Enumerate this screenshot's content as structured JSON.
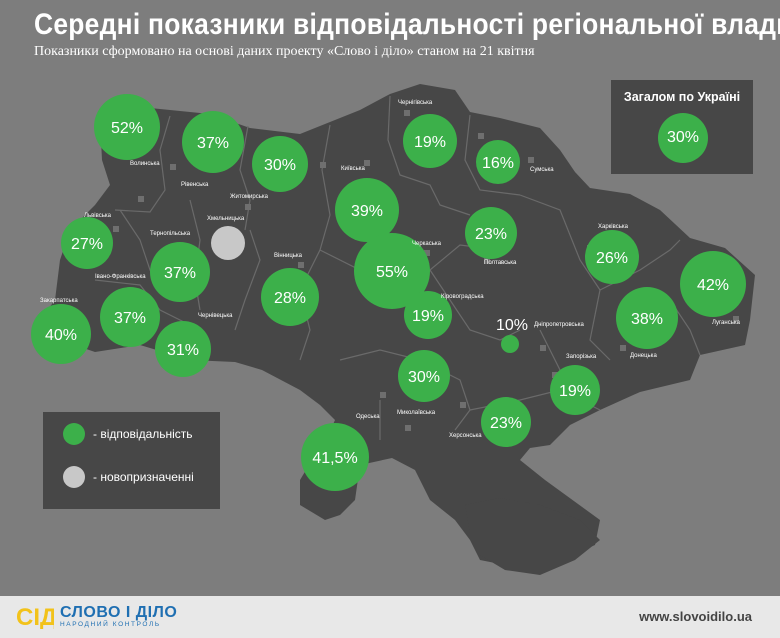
{
  "title": "Середні показники відповідальності регіональної влади",
  "subtitle": "Показники сформовано на основі даних проекту «Слово і діло» станом на 21 квітня",
  "ukraine_total": {
    "label": "Загалом по Україні",
    "value": "30%"
  },
  "legend": {
    "responsibility": "- відповідальність",
    "new_appointed": "- новопризначенні",
    "responsibility_color": "#3cb04a",
    "new_appointed_color": "#c8c8c8"
  },
  "colors": {
    "bubble": "#3cb04a",
    "new": "#c8c8c8",
    "map": "#474747",
    "border": "#6a6a6a",
    "background": "#7d7d7d"
  },
  "footer": {
    "logo_mark": "СІД",
    "logo_name": "СЛОВО І ДІЛО",
    "logo_tagline": "НАРОДНИЙ КОНТРОЛЬ",
    "website": "www.slovoidilo.ua"
  },
  "chart_data": {
    "type": "bubble-map",
    "title": "Середні показники відповідальності регіональної влади",
    "series": [
      {
        "name": "відповідальність"
      }
    ],
    "regions": [
      {
        "name": "Волинська",
        "label": "52%",
        "value": 52
      },
      {
        "name": "Рівенська",
        "label": "37%",
        "value": 37
      },
      {
        "name": "Житомирська",
        "label": "30%",
        "value": 30
      },
      {
        "name": "Київська",
        "label": "39%",
        "value": 39
      },
      {
        "name": "Чернігівська",
        "label": "19%",
        "value": 19
      },
      {
        "name": "Сумська",
        "label": "16%",
        "value": 16
      },
      {
        "name": "Львівська",
        "label": "27%",
        "value": 27
      },
      {
        "name": "Хмельницька",
        "label": "",
        "value": null,
        "status": "новопризначенні"
      },
      {
        "name": "Тернопільська",
        "label": "37%",
        "value": 37
      },
      {
        "name": "Івано-Франківська",
        "label": "37%",
        "value": 37
      },
      {
        "name": "Закарпатська",
        "label": "40%",
        "value": 40
      },
      {
        "name": "Чернівецька",
        "label": "31%",
        "value": 31
      },
      {
        "name": "Вінницька",
        "label": "28%",
        "value": 28
      },
      {
        "name": "Черкаська",
        "label": "55%",
        "value": 55
      },
      {
        "name": "Полтавська",
        "label": "23%",
        "value": 23
      },
      {
        "name": "Харківська",
        "label": "26%",
        "value": 26
      },
      {
        "name": "Луганська",
        "label": "42%",
        "value": 42
      },
      {
        "name": "Кіровоградська",
        "label": "19%",
        "value": 19
      },
      {
        "name": "Дніпропетровська",
        "label": "10%",
        "value": 10
      },
      {
        "name": "Донецька",
        "label": "38%",
        "value": 38
      },
      {
        "name": "Миколаївська",
        "label": "30%",
        "value": 30
      },
      {
        "name": "Запорізька",
        "label": "19%",
        "value": 19
      },
      {
        "name": "Херсонська",
        "label": "23%",
        "value": 23
      },
      {
        "name": "Одеська",
        "label": "41,5%",
        "value": 41.5
      }
    ]
  }
}
